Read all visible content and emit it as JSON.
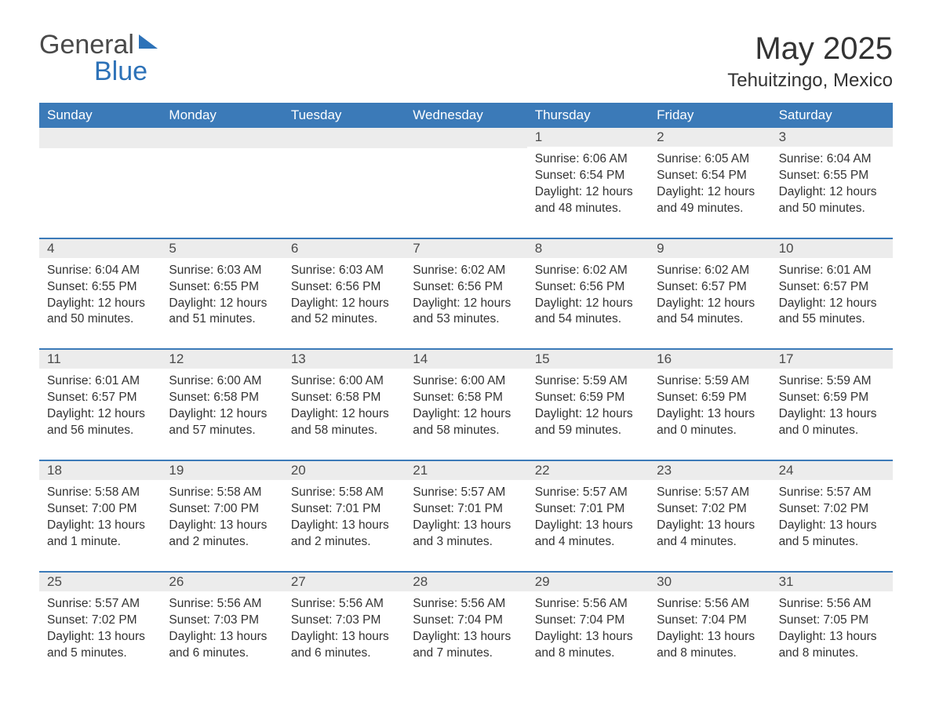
{
  "logo": {
    "text1": "General",
    "text2": "Blue"
  },
  "title": "May 2025",
  "subtitle": "Tehuitzingo, Mexico",
  "colors": {
    "header_bg": "#3b7ab8",
    "header_text": "#ffffff",
    "daynum_bg": "#ececec",
    "body_text": "#333333",
    "logo_gray": "#4a4a4a",
    "logo_blue": "#2d72b8",
    "row_border": "#3b7ab8"
  },
  "columns": [
    "Sunday",
    "Monday",
    "Tuesday",
    "Wednesday",
    "Thursday",
    "Friday",
    "Saturday"
  ],
  "weeks": [
    [
      {
        "day": "",
        "sunrise": "",
        "sunset": "",
        "daylight": ""
      },
      {
        "day": "",
        "sunrise": "",
        "sunset": "",
        "daylight": ""
      },
      {
        "day": "",
        "sunrise": "",
        "sunset": "",
        "daylight": ""
      },
      {
        "day": "",
        "sunrise": "",
        "sunset": "",
        "daylight": ""
      },
      {
        "day": "1",
        "sunrise": "Sunrise: 6:06 AM",
        "sunset": "Sunset: 6:54 PM",
        "daylight": "Daylight: 12 hours and 48 minutes."
      },
      {
        "day": "2",
        "sunrise": "Sunrise: 6:05 AM",
        "sunset": "Sunset: 6:54 PM",
        "daylight": "Daylight: 12 hours and 49 minutes."
      },
      {
        "day": "3",
        "sunrise": "Sunrise: 6:04 AM",
        "sunset": "Sunset: 6:55 PM",
        "daylight": "Daylight: 12 hours and 50 minutes."
      }
    ],
    [
      {
        "day": "4",
        "sunrise": "Sunrise: 6:04 AM",
        "sunset": "Sunset: 6:55 PM",
        "daylight": "Daylight: 12 hours and 50 minutes."
      },
      {
        "day": "5",
        "sunrise": "Sunrise: 6:03 AM",
        "sunset": "Sunset: 6:55 PM",
        "daylight": "Daylight: 12 hours and 51 minutes."
      },
      {
        "day": "6",
        "sunrise": "Sunrise: 6:03 AM",
        "sunset": "Sunset: 6:56 PM",
        "daylight": "Daylight: 12 hours and 52 minutes."
      },
      {
        "day": "7",
        "sunrise": "Sunrise: 6:02 AM",
        "sunset": "Sunset: 6:56 PM",
        "daylight": "Daylight: 12 hours and 53 minutes."
      },
      {
        "day": "8",
        "sunrise": "Sunrise: 6:02 AM",
        "sunset": "Sunset: 6:56 PM",
        "daylight": "Daylight: 12 hours and 54 minutes."
      },
      {
        "day": "9",
        "sunrise": "Sunrise: 6:02 AM",
        "sunset": "Sunset: 6:57 PM",
        "daylight": "Daylight: 12 hours and 54 minutes."
      },
      {
        "day": "10",
        "sunrise": "Sunrise: 6:01 AM",
        "sunset": "Sunset: 6:57 PM",
        "daylight": "Daylight: 12 hours and 55 minutes."
      }
    ],
    [
      {
        "day": "11",
        "sunrise": "Sunrise: 6:01 AM",
        "sunset": "Sunset: 6:57 PM",
        "daylight": "Daylight: 12 hours and 56 minutes."
      },
      {
        "day": "12",
        "sunrise": "Sunrise: 6:00 AM",
        "sunset": "Sunset: 6:58 PM",
        "daylight": "Daylight: 12 hours and 57 minutes."
      },
      {
        "day": "13",
        "sunrise": "Sunrise: 6:00 AM",
        "sunset": "Sunset: 6:58 PM",
        "daylight": "Daylight: 12 hours and 58 minutes."
      },
      {
        "day": "14",
        "sunrise": "Sunrise: 6:00 AM",
        "sunset": "Sunset: 6:58 PM",
        "daylight": "Daylight: 12 hours and 58 minutes."
      },
      {
        "day": "15",
        "sunrise": "Sunrise: 5:59 AM",
        "sunset": "Sunset: 6:59 PM",
        "daylight": "Daylight: 12 hours and 59 minutes."
      },
      {
        "day": "16",
        "sunrise": "Sunrise: 5:59 AM",
        "sunset": "Sunset: 6:59 PM",
        "daylight": "Daylight: 13 hours and 0 minutes."
      },
      {
        "day": "17",
        "sunrise": "Sunrise: 5:59 AM",
        "sunset": "Sunset: 6:59 PM",
        "daylight": "Daylight: 13 hours and 0 minutes."
      }
    ],
    [
      {
        "day": "18",
        "sunrise": "Sunrise: 5:58 AM",
        "sunset": "Sunset: 7:00 PM",
        "daylight": "Daylight: 13 hours and 1 minute."
      },
      {
        "day": "19",
        "sunrise": "Sunrise: 5:58 AM",
        "sunset": "Sunset: 7:00 PM",
        "daylight": "Daylight: 13 hours and 2 minutes."
      },
      {
        "day": "20",
        "sunrise": "Sunrise: 5:58 AM",
        "sunset": "Sunset: 7:01 PM",
        "daylight": "Daylight: 13 hours and 2 minutes."
      },
      {
        "day": "21",
        "sunrise": "Sunrise: 5:57 AM",
        "sunset": "Sunset: 7:01 PM",
        "daylight": "Daylight: 13 hours and 3 minutes."
      },
      {
        "day": "22",
        "sunrise": "Sunrise: 5:57 AM",
        "sunset": "Sunset: 7:01 PM",
        "daylight": "Daylight: 13 hours and 4 minutes."
      },
      {
        "day": "23",
        "sunrise": "Sunrise: 5:57 AM",
        "sunset": "Sunset: 7:02 PM",
        "daylight": "Daylight: 13 hours and 4 minutes."
      },
      {
        "day": "24",
        "sunrise": "Sunrise: 5:57 AM",
        "sunset": "Sunset: 7:02 PM",
        "daylight": "Daylight: 13 hours and 5 minutes."
      }
    ],
    [
      {
        "day": "25",
        "sunrise": "Sunrise: 5:57 AM",
        "sunset": "Sunset: 7:02 PM",
        "daylight": "Daylight: 13 hours and 5 minutes."
      },
      {
        "day": "26",
        "sunrise": "Sunrise: 5:56 AM",
        "sunset": "Sunset: 7:03 PM",
        "daylight": "Daylight: 13 hours and 6 minutes."
      },
      {
        "day": "27",
        "sunrise": "Sunrise: 5:56 AM",
        "sunset": "Sunset: 7:03 PM",
        "daylight": "Daylight: 13 hours and 6 minutes."
      },
      {
        "day": "28",
        "sunrise": "Sunrise: 5:56 AM",
        "sunset": "Sunset: 7:04 PM",
        "daylight": "Daylight: 13 hours and 7 minutes."
      },
      {
        "day": "29",
        "sunrise": "Sunrise: 5:56 AM",
        "sunset": "Sunset: 7:04 PM",
        "daylight": "Daylight: 13 hours and 8 minutes."
      },
      {
        "day": "30",
        "sunrise": "Sunrise: 5:56 AM",
        "sunset": "Sunset: 7:04 PM",
        "daylight": "Daylight: 13 hours and 8 minutes."
      },
      {
        "day": "31",
        "sunrise": "Sunrise: 5:56 AM",
        "sunset": "Sunset: 7:05 PM",
        "daylight": "Daylight: 13 hours and 8 minutes."
      }
    ]
  ]
}
